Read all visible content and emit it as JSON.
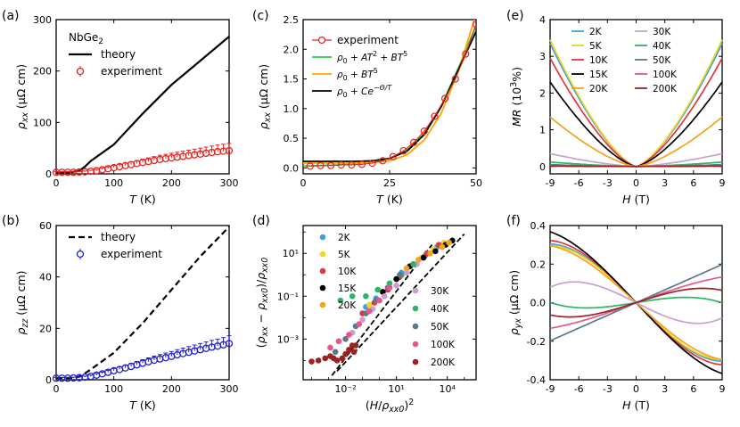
{
  "panels": [
    {
      "id": "a",
      "label": "(a)"
    },
    {
      "id": "b",
      "label": "(b)"
    },
    {
      "id": "c",
      "label": "(c)"
    },
    {
      "id": "d",
      "label": "(d)"
    },
    {
      "id": "e",
      "label": "(e)"
    },
    {
      "id": "f",
      "label": "(f)"
    }
  ],
  "chart_data": [
    {
      "id": "a",
      "type": "line",
      "title": "NbGe₂",
      "xlabel": "T (K)",
      "ylabel": "ρxx (μΩ cm)",
      "xlim": [
        0,
        300
      ],
      "ylim": [
        0,
        300
      ],
      "xticks": [
        0,
        100,
        200,
        300
      ],
      "yticks": [
        0,
        100,
        200,
        300
      ],
      "legend": [
        "theory",
        "experiment"
      ],
      "series": [
        {
          "name": "theory",
          "style": "solid",
          "color": "#000000",
          "x": [
            0,
            25,
            40,
            50,
            60,
            100,
            150,
            200,
            250,
            300
          ],
          "y": [
            3,
            3,
            6,
            14,
            25,
            57,
            117,
            173,
            220,
            267
          ]
        },
        {
          "name": "experiment",
          "style": "markers",
          "color": "#e8211d",
          "x": [
            0,
            10,
            20,
            30,
            40,
            50,
            60,
            70,
            80,
            90,
            100,
            110,
            120,
            130,
            140,
            150,
            160,
            170,
            180,
            190,
            200,
            210,
            220,
            230,
            240,
            250,
            260,
            270,
            280,
            290,
            300
          ],
          "y": [
            3,
            3,
            3,
            3,
            3.5,
            4,
            5,
            6,
            8,
            10,
            12,
            14,
            16,
            18,
            20,
            22,
            24,
            26,
            28,
            29.5,
            31,
            32.5,
            34,
            35.5,
            37,
            38.5,
            40,
            41.5,
            43,
            44,
            45
          ],
          "err": [
            1,
            1,
            1,
            1,
            1,
            1.5,
            2,
            2.5,
            3,
            3.5,
            4,
            4.5,
            5,
            5.5,
            6,
            6.5,
            7,
            7.5,
            8,
            8.5,
            9,
            9.5,
            10,
            10.5,
            11,
            11.5,
            12,
            12.5,
            13,
            13.5,
            14
          ]
        }
      ]
    },
    {
      "id": "b",
      "type": "line",
      "xlabel": "T (K)",
      "ylabel": "ρzz (μΩ cm)",
      "xlim": [
        0,
        300
      ],
      "ylim": [
        0,
        60
      ],
      "xticks": [
        0,
        100,
        200,
        300
      ],
      "yticks": [
        0,
        20,
        40,
        60
      ],
      "legend": [
        "theory",
        "experiment"
      ],
      "series": [
        {
          "name": "theory",
          "style": "dashed",
          "color": "#000000",
          "x": [
            0,
            30,
            40,
            50,
            60,
            100,
            150,
            200,
            250,
            300
          ],
          "y": [
            0.7,
            0.7,
            1.2,
            2.5,
            4,
            10.5,
            22,
            35,
            48,
            59.5
          ]
        },
        {
          "name": "experiment",
          "style": "markers",
          "color": "#1f1fd1",
          "x": [
            0,
            10,
            20,
            30,
            40,
            50,
            60,
            70,
            80,
            90,
            100,
            110,
            120,
            130,
            140,
            150,
            160,
            170,
            180,
            190,
            200,
            210,
            220,
            230,
            240,
            250,
            260,
            270,
            280,
            290,
            300
          ],
          "y": [
            0.6,
            0.6,
            0.6,
            0.7,
            0.8,
            1.0,
            1.3,
            1.8,
            2.3,
            2.9,
            3.5,
            4.0,
            4.6,
            5.2,
            5.8,
            6.4,
            7.0,
            7.6,
            8.1,
            8.6,
            9.1,
            9.7,
            10.2,
            10.7,
            11.2,
            11.7,
            12.2,
            12.7,
            13.1,
            13.6,
            14.1
          ],
          "err": [
            0.3,
            0.3,
            0.3,
            0.3,
            0.3,
            0.4,
            0.5,
            0.6,
            0.7,
            0.8,
            0.9,
            1.0,
            1.1,
            1.2,
            1.3,
            1.4,
            1.5,
            1.6,
            1.7,
            1.8,
            1.9,
            2.0,
            2.1,
            2.2,
            2.3,
            2.4,
            2.5,
            2.6,
            2.7,
            2.8,
            3.0
          ]
        }
      ]
    },
    {
      "id": "c",
      "type": "line",
      "xlabel": "T (K)",
      "ylabel": "ρxx (μΩ cm)",
      "xlim": [
        0,
        50
      ],
      "ylim": [
        -0.1,
        2.5
      ],
      "xticks": [
        0,
        25,
        50
      ],
      "yticks": [
        0.0,
        0.5,
        1.0,
        1.5,
        2.0,
        2.5
      ],
      "legend": [
        "experiment",
        "ρ0+AT²+BT⁵",
        "ρ0+BT⁵",
        "ρ0+Ce^(−Θ/T)"
      ],
      "series": [
        {
          "name": "experiment",
          "style": "markers-line",
          "color": "#e8211d",
          "x": [
            2,
            5,
            8,
            11,
            14,
            17,
            20,
            23,
            26,
            29,
            32,
            35,
            38,
            41,
            44,
            47,
            50
          ],
          "y": [
            0.03,
            0.04,
            0.04,
            0.05,
            0.05,
            0.06,
            0.08,
            0.12,
            0.19,
            0.29,
            0.43,
            0.62,
            0.87,
            1.17,
            1.5,
            1.92,
            2.42
          ]
        },
        {
          "name": "ρ0+AT²+BT⁵",
          "style": "solid",
          "color": "#2ecc40",
          "x": [
            0,
            5,
            10,
            15,
            20,
            25,
            30,
            35,
            40,
            45,
            50
          ],
          "y": [
            0.03,
            0.04,
            0.05,
            0.07,
            0.1,
            0.16,
            0.3,
            0.58,
            1.05,
            1.7,
            2.4
          ]
        },
        {
          "name": "ρ0+BT⁵",
          "style": "solid",
          "color": "#ffa500",
          "x": [
            0,
            5,
            10,
            15,
            20,
            25,
            30,
            35,
            40,
            45,
            50
          ],
          "y": [
            0.08,
            0.08,
            0.08,
            0.08,
            0.09,
            0.12,
            0.22,
            0.47,
            0.93,
            1.65,
            2.6
          ]
        },
        {
          "name": "ρ0+Ce^(−Θ/T)",
          "style": "solid",
          "color": "#000000",
          "x": [
            0,
            5,
            10,
            15,
            20,
            25,
            30,
            35,
            40,
            45,
            50
          ],
          "y": [
            0.11,
            0.11,
            0.11,
            0.11,
            0.12,
            0.16,
            0.28,
            0.56,
            1.04,
            1.67,
            2.3
          ]
        }
      ]
    },
    {
      "id": "d",
      "type": "scatter",
      "scale": "log-log",
      "xlabel": "(H/ρxx0)²",
      "ylabel": "(ρxx − ρxx0)/ρxx0",
      "xlim_log10": [
        -4.5,
        5.7
      ],
      "ylim_log10": [
        -4.9,
        2.3
      ],
      "xticks_log10": [
        -2,
        1,
        4
      ],
      "xtick_labels": [
        "10⁻²",
        "10¹",
        "10⁴"
      ],
      "yticks_log10": [
        -3,
        -1,
        1
      ],
      "ytick_labels": [
        "10⁻³",
        "10⁻¹",
        "10¹"
      ],
      "legend": [
        "2K",
        "5K",
        "10K",
        "15K",
        "20K",
        "30K",
        "40K",
        "50K",
        "100K",
        "200K"
      ],
      "series": [
        {
          "name": "guide-1",
          "style": "dashed",
          "color": "#000000",
          "log10x": [
            -2.8,
            3.1
          ],
          "log10y": [
            -4.7,
            1.4
          ]
        },
        {
          "name": "guide-2",
          "style": "dashed",
          "color": "#000000",
          "log10x": [
            -2.5,
            5.0
          ],
          "log10y": [
            -4.5,
            1.9
          ]
        },
        {
          "name": "2K",
          "color": "#3ea0dd",
          "log10x": [
            -0.8,
            -0.2,
            0.5,
            1.3,
            2.0,
            2.7,
            3.4
          ],
          "log10y": [
            -1.5,
            -1.1,
            -0.6,
            0.1,
            0.5,
            0.9,
            1.3
          ]
        },
        {
          "name": "5K",
          "color": "#eed81e",
          "log10x": [
            -0.6,
            0.2,
            1.0,
            1.8,
            2.5,
            3.2,
            3.8
          ],
          "log10y": [
            -1.4,
            -0.8,
            -0.2,
            0.4,
            0.8,
            1.2,
            1.5
          ]
        },
        {
          "name": "10K",
          "color": "#e0353c",
          "log10x": [
            -1.0,
            -0.3,
            0.5,
            1.2,
            2.0,
            2.8,
            3.5
          ],
          "log10y": [
            -1.8,
            -1.3,
            -0.7,
            -0.1,
            0.5,
            1.0,
            1.4
          ]
        },
        {
          "name": "15K",
          "color": "#000000",
          "log10x": [
            0.2,
            1.0,
            1.8,
            2.6,
            3.3,
            3.9,
            4.3
          ],
          "log10y": [
            -0.8,
            -0.2,
            0.4,
            0.8,
            1.1,
            1.4,
            1.6
          ]
        },
        {
          "name": "20K",
          "color": "#f5a21c",
          "log10x": [
            1.6,
            2.3,
            3.0,
            3.7,
            4.1
          ],
          "log10y": [
            0.3,
            0.7,
            1.0,
            1.3,
            1.5
          ]
        },
        {
          "name": "30K",
          "color": "#c79fd0",
          "log10x": [
            -1.6,
            -1.0,
            -0.4,
            0.3,
            1.0,
            1.6,
            2.2
          ],
          "log10y": [
            -2.7,
            -2.1,
            -1.6,
            -1.0,
            -0.5,
            0.1,
            0.5
          ]
        },
        {
          "name": "40K",
          "color": "#2db562",
          "log10x": [
            -2.3,
            -1.6,
            -0.8,
            -0.1,
            0.6,
            1.3,
            2.0
          ],
          "log10y": [
            -1.2,
            -1.0,
            -1.0,
            -0.7,
            -0.4,
            0.0,
            0.5
          ]
        },
        {
          "name": "50K",
          "color": "#5a7a8c",
          "log10x": [
            -2.6,
            -2.0,
            -1.4,
            -0.8,
            -0.2,
            0.5,
            1.2
          ],
          "log10y": [
            -3.6,
            -3.0,
            -2.4,
            -1.8,
            -1.2,
            -0.6,
            0.0
          ]
        },
        {
          "name": "100K",
          "color": "#e8568a",
          "log10x": [
            -2.9,
            -2.4,
            -1.8,
            -1.2,
            -0.6,
            0.0,
            0.6
          ],
          "log10y": [
            -3.4,
            -3.1,
            -2.8,
            -2.3,
            -1.7,
            -1.2,
            -0.6
          ]
        },
        {
          "name": "200K",
          "color": "#9c2222",
          "log10x": [
            -4.0,
            -3.6,
            -3.2,
            -2.9,
            -2.7,
            -2.5,
            -2.2,
            -2.0,
            -1.8,
            -1.6,
            -1.5,
            -1.4
          ],
          "log10y": [
            -4.05,
            -4.0,
            -3.9,
            -3.8,
            -3.9,
            -4.0,
            -3.9,
            -3.7,
            -3.5,
            -3.3,
            -3.6,
            -3.3
          ]
        }
      ]
    },
    {
      "id": "e",
      "type": "line",
      "xlabel": "H (T)",
      "ylabel": "MR (10³%)",
      "xlim": [
        -9,
        9
      ],
      "ylim": [
        -0.2,
        4
      ],
      "xticks": [
        -9,
        -6,
        -3,
        0,
        3,
        6,
        9
      ],
      "yticks": [
        0,
        1,
        2,
        3,
        4
      ],
      "legend": [
        "2K",
        "5K",
        "10K",
        "15K",
        "20K",
        "30K",
        "40K",
        "50K",
        "100K",
        "200K"
      ],
      "series": [
        {
          "name": "2K",
          "color": "#3ea0dd",
          "peak": 3.35
        },
        {
          "name": "5K",
          "color": "#eed81e",
          "peak": 3.45
        },
        {
          "name": "10K",
          "color": "#e0353c",
          "peak": 2.95
        },
        {
          "name": "15K",
          "color": "#000000",
          "peak": 2.3
        },
        {
          "name": "20K",
          "color": "#f5a21c",
          "peak": 1.35
        },
        {
          "name": "30K",
          "color": "#c79fd0",
          "peak": 0.35
        },
        {
          "name": "40K",
          "color": "#2db562",
          "peak": 0.12
        },
        {
          "name": "50K",
          "color": "#5a7a8c",
          "peak": 0.05
        },
        {
          "name": "100K",
          "color": "#e8568a",
          "peak": 0.02
        },
        {
          "name": "200K",
          "color": "#9c2222",
          "peak": 0.01
        }
      ]
    },
    {
      "id": "f",
      "type": "line",
      "xlabel": "H (T)",
      "ylabel": "ρyx (μΩ cm)",
      "xlim": [
        -9,
        9
      ],
      "ylim": [
        -0.4,
        0.4
      ],
      "xticks": [
        -9,
        -6,
        -3,
        0,
        3,
        6,
        9
      ],
      "yticks": [
        -0.4,
        -0.2,
        0.0,
        0.2,
        0.4
      ],
      "series": [
        {
          "name": "2K",
          "color": "#3ea0dd",
          "a": -0.05,
          "c": 0.0002
        },
        {
          "name": "5K",
          "color": "#eed81e",
          "a": -0.049,
          "c": 0.0002
        },
        {
          "name": "10K",
          "color": "#e0353c",
          "a": -0.052,
          "c": 0.0002
        },
        {
          "name": "15K",
          "color": "#000000",
          "a": -0.053,
          "c": 0.00015
        },
        {
          "name": "20K",
          "color": "#f5a21c",
          "a": -0.045,
          "c": 0.00015
        },
        {
          "name": "30K",
          "color": "#c79fd0",
          "a": -0.025,
          "c": 0.0002
        },
        {
          "name": "40K",
          "color": "#2db562",
          "a": 0.008,
          "c": -0.0001
        },
        {
          "name": "50K",
          "color": "#5a7a8c",
          "a": 0.022,
          "c": 0.0
        },
        {
          "name": "100K",
          "color": "#e8568a",
          "a": 0.018,
          "c": -4e-05
        },
        {
          "name": "200K",
          "color": "#9c2222",
          "a": 0.016,
          "c": -0.00011
        }
      ]
    }
  ]
}
